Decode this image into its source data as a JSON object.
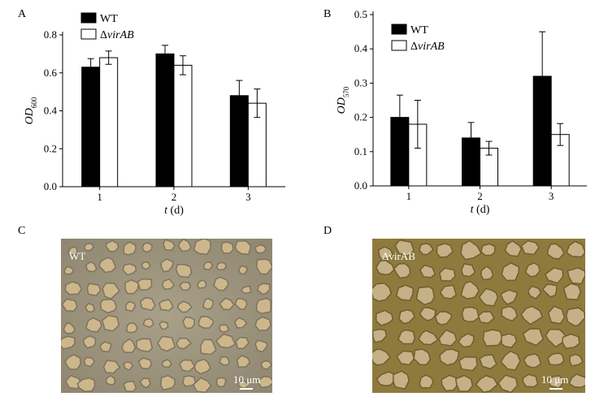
{
  "panels": {
    "a": {
      "letter": "A"
    },
    "b": {
      "letter": "B"
    },
    "c": {
      "letter": "C",
      "label": "WT",
      "scale": "10 μm"
    },
    "d": {
      "letter": "D",
      "label": "ΔvirAB",
      "scale": "10 μm"
    }
  },
  "chart_data": [
    {
      "type": "bar",
      "categories": [
        "1",
        "2",
        "3"
      ],
      "ylim": [
        0,
        0.8
      ],
      "yticks": [
        "0.0",
        "0.2",
        "0.4",
        "0.6",
        "0.8"
      ],
      "xlabel": "t (d)",
      "ylabel": "OD600",
      "legend_position": "top-left",
      "series": [
        {
          "name": "WT",
          "color": "#000000",
          "values": [
            0.63,
            0.7,
            0.48
          ],
          "errors": [
            0.045,
            0.045,
            0.08
          ]
        },
        {
          "name": "ΔvirAB",
          "color": "#ffffff",
          "values": [
            0.68,
            0.64,
            0.44
          ],
          "errors": [
            0.035,
            0.05,
            0.075
          ]
        }
      ]
    },
    {
      "type": "bar",
      "categories": [
        "1",
        "2",
        "3"
      ],
      "ylim": [
        0,
        0.5
      ],
      "yticks": [
        "0.0",
        "0.1",
        "0.2",
        "0.3",
        "0.4",
        "0.5"
      ],
      "xlabel": "t (d)",
      "ylabel": "OD570",
      "legend_position": "top-left",
      "series": [
        {
          "name": "WT",
          "color": "#000000",
          "values": [
            0.2,
            0.14,
            0.32
          ],
          "errors": [
            0.065,
            0.045,
            0.13
          ]
        },
        {
          "name": "ΔvirAB",
          "color": "#ffffff",
          "values": [
            0.18,
            0.11,
            0.15
          ],
          "errors": [
            0.07,
            0.02,
            0.032
          ]
        }
      ]
    }
  ]
}
